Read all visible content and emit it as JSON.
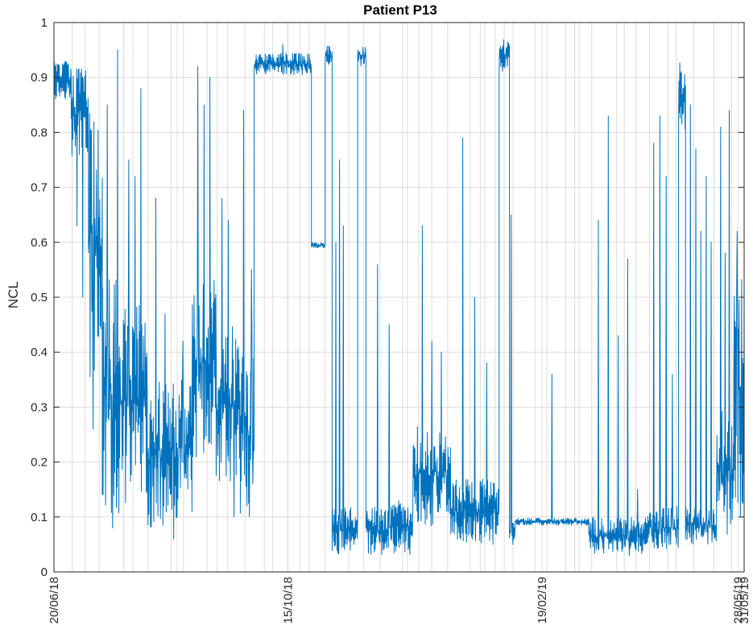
{
  "chart_data": {
    "type": "line",
    "title": "Patient P13",
    "ylabel": "NCL",
    "xlabel": "",
    "ylim": [
      0,
      1
    ],
    "yticks": [
      0,
      0.1,
      0.2,
      0.3,
      0.4,
      0.5,
      0.6,
      0.7,
      0.8,
      0.9,
      1
    ],
    "ytick_labels": [
      "0",
      "0.1",
      "0.2",
      "0.3",
      "0.4",
      "0.5",
      "0.6",
      "0.7",
      "0.8",
      "0.9",
      "1"
    ],
    "xlim": [
      "2018-06-20",
      "2019-05-31"
    ],
    "xticks": [
      {
        "date": "2018-06-20",
        "label": "20/06/18"
      },
      {
        "date": "2018-10-15",
        "label": "15/10/18"
      },
      {
        "date": "2019-02-19",
        "label": "19/02/19"
      },
      {
        "date": "2019-05-28",
        "label": "28/05/19"
      },
      {
        "date": "2019-05-31",
        "label": "31/05/19"
      }
    ],
    "grid": true,
    "line_color": "#0072BD",
    "segments": [
      {
        "start": 0.0,
        "end": 0.025,
        "lo": 0.86,
        "hi": 0.93,
        "spikes": []
      },
      {
        "start": 0.025,
        "end": 0.05,
        "lo": 0.75,
        "hi": 0.92,
        "spikes": [
          0.63,
          0.5
        ]
      },
      {
        "start": 0.05,
        "end": 0.07,
        "lo": 0.35,
        "hi": 0.85,
        "spikes": [
          0.26,
          0.43
        ]
      },
      {
        "start": 0.07,
        "end": 0.1,
        "lo": 0.1,
        "hi": 0.55,
        "spikes": [
          0.85,
          0.08,
          0.95
        ]
      },
      {
        "start": 0.1,
        "end": 0.135,
        "lo": 0.12,
        "hi": 0.5,
        "spikes": [
          0.75,
          0.72,
          0.88
        ]
      },
      {
        "start": 0.135,
        "end": 0.2,
        "lo": 0.08,
        "hi": 0.35,
        "spikes": [
          0.68,
          0.47,
          0.06,
          0.42
        ]
      },
      {
        "start": 0.2,
        "end": 0.235,
        "lo": 0.2,
        "hi": 0.55,
        "spikes": [
          0.92,
          0.85,
          0.9
        ]
      },
      {
        "start": 0.235,
        "end": 0.27,
        "lo": 0.15,
        "hi": 0.45,
        "spikes": [
          0.68,
          0.64,
          0.1
        ]
      },
      {
        "start": 0.27,
        "end": 0.285,
        "lo": 0.1,
        "hi": 0.4,
        "spikes": [
          0.84,
          0.12
        ]
      },
      {
        "start": 0.285,
        "end": 0.29,
        "lo": 0.2,
        "hi": 0.45,
        "spikes": [
          0.55,
          0.16
        ]
      },
      {
        "start": 0.29,
        "end": 0.373,
        "lo": 0.905,
        "hi": 0.945,
        "spikes": [
          0.96
        ]
      },
      {
        "start": 0.373,
        "end": 0.393,
        "lo": 0.59,
        "hi": 0.6,
        "spikes": []
      },
      {
        "start": 0.393,
        "end": 0.403,
        "lo": 0.92,
        "hi": 0.96,
        "spikes": []
      },
      {
        "start": 0.403,
        "end": 0.43,
        "lo": 0.03,
        "hi": 0.12,
        "spikes": [
          0.6,
          0.75,
          0.63,
          0.05
        ]
      },
      {
        "start": 0.43,
        "end": 0.44,
        "lo": 0.05,
        "hi": 0.1,
        "spikes": [
          0.05
        ]
      },
      {
        "start": 0.44,
        "end": 0.452,
        "lo": 0.92,
        "hi": 0.96,
        "spikes": []
      },
      {
        "start": 0.452,
        "end": 0.52,
        "lo": 0.03,
        "hi": 0.13,
        "spikes": [
          0.56,
          0.45,
          0.05
        ]
      },
      {
        "start": 0.52,
        "end": 0.575,
        "lo": 0.08,
        "hi": 0.27,
        "spikes": [
          0.63,
          0.42,
          0.4
        ]
      },
      {
        "start": 0.575,
        "end": 0.645,
        "lo": 0.05,
        "hi": 0.17,
        "spikes": [
          0.79,
          0.5,
          0.38
        ]
      },
      {
        "start": 0.645,
        "end": 0.66,
        "lo": 0.91,
        "hi": 0.97,
        "spikes": []
      },
      {
        "start": 0.66,
        "end": 0.668,
        "lo": 0.05,
        "hi": 0.1,
        "spikes": [
          0.65,
          0.05
        ]
      },
      {
        "start": 0.668,
        "end": 0.775,
        "lo": 0.085,
        "hi": 0.098,
        "spikes": [
          0.36
        ]
      },
      {
        "start": 0.775,
        "end": 0.86,
        "lo": 0.03,
        "hi": 0.1,
        "spikes": [
          0.64,
          0.83,
          0.43,
          0.57,
          0.15
        ]
      },
      {
        "start": 0.86,
        "end": 0.905,
        "lo": 0.04,
        "hi": 0.12,
        "spikes": [
          0.78,
          0.83,
          0.72,
          0.36
        ]
      },
      {
        "start": 0.905,
        "end": 0.915,
        "lo": 0.8,
        "hi": 0.94,
        "spikes": []
      },
      {
        "start": 0.915,
        "end": 0.96,
        "lo": 0.05,
        "hi": 0.12,
        "spikes": [
          0.85,
          0.77,
          0.62,
          0.72,
          0.6
        ]
      },
      {
        "start": 0.96,
        "end": 0.985,
        "lo": 0.05,
        "hi": 0.3,
        "spikes": [
          0.81,
          0.58,
          0.84
        ]
      },
      {
        "start": 0.985,
        "end": 1.0,
        "lo": 0.12,
        "hi": 0.55,
        "spikes": [
          0.62,
          0.1
        ]
      }
    ]
  }
}
